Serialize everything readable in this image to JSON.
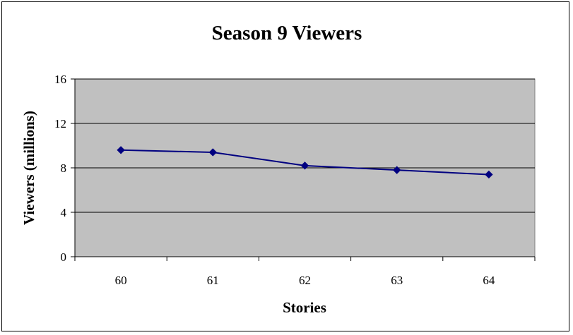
{
  "chart_data": {
    "type": "line",
    "title": "Season 9 Viewers",
    "xlabel": "Stories",
    "ylabel": "Viewers (millions)",
    "categories": [
      "60",
      "61",
      "62",
      "63",
      "64"
    ],
    "ylim": [
      0,
      16
    ],
    "yticks": [
      "0",
      "4",
      "8",
      "12",
      "16"
    ],
    "series": [
      {
        "values": [
          9.6,
          9.4,
          8.2,
          7.8,
          7.4
        ]
      }
    ],
    "grid": true,
    "legend": "none",
    "colors": {
      "line": "#000080",
      "plot_background": "#c0c0c0",
      "gridline": "#000000"
    }
  }
}
